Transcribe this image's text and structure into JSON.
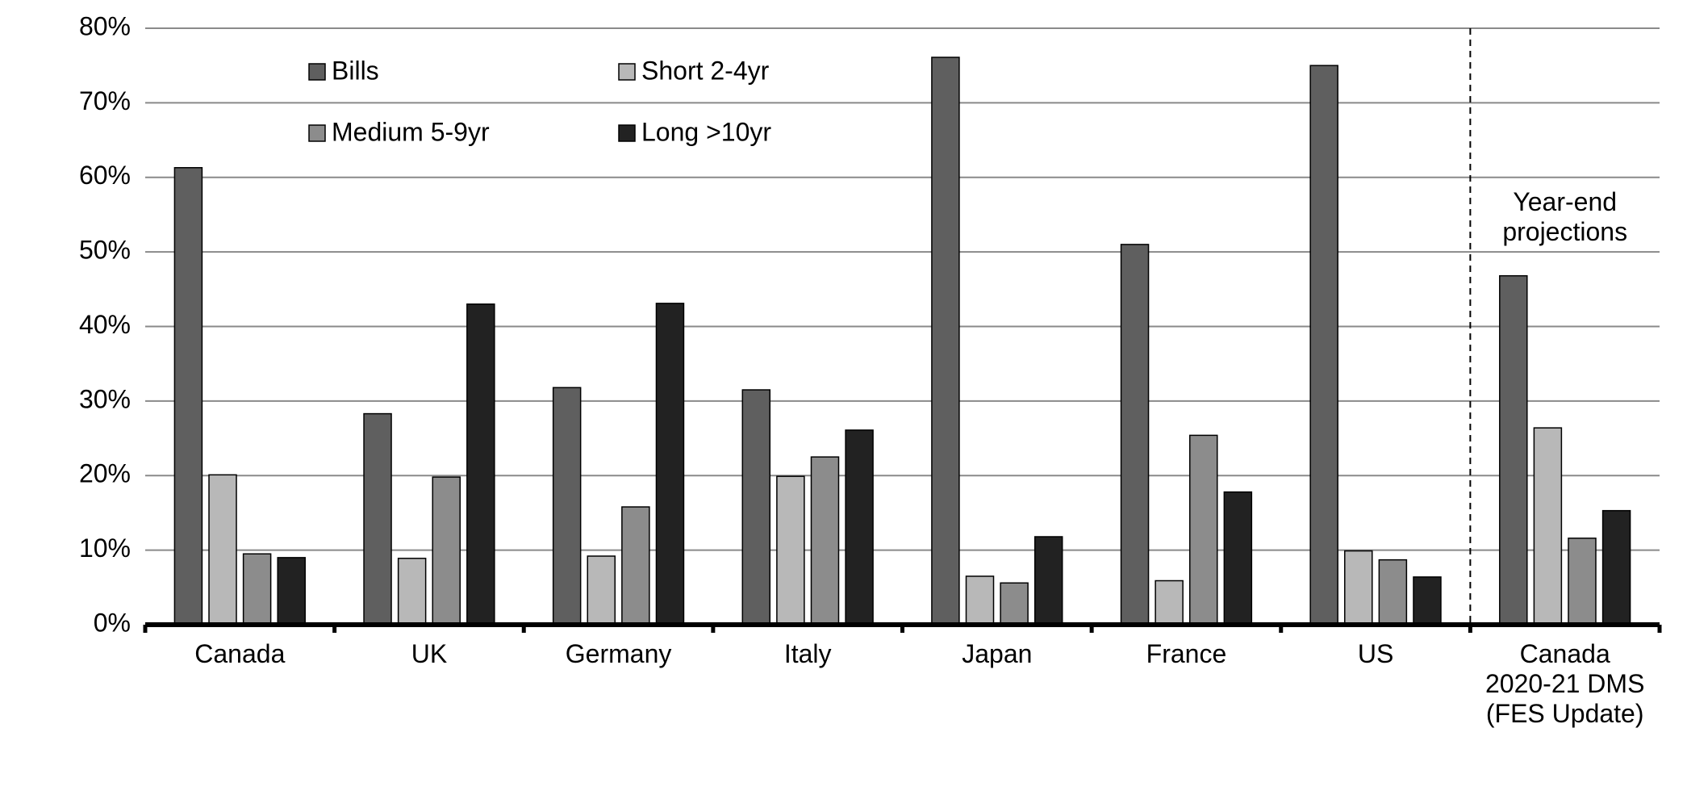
{
  "chart_data": {
    "type": "bar",
    "categories": [
      "Canada",
      "UK",
      "Germany",
      "Italy",
      "Japan",
      "France",
      "US",
      "Canada 2020-21 DMS (FES Update)"
    ],
    "series": [
      {
        "name": "Bills",
        "color": "#5f5f5f",
        "values": [
          61.3,
          28.3,
          31.8,
          31.5,
          76.1,
          51.0,
          75.0,
          46.8
        ]
      },
      {
        "name": "Short 2-4yr",
        "color": "#b8b8b8",
        "values": [
          20.1,
          8.9,
          9.2,
          19.9,
          6.5,
          5.9,
          9.9,
          26.4
        ]
      },
      {
        "name": "Medium 5-9yr",
        "color": "#8c8c8c",
        "values": [
          9.5,
          19.8,
          15.8,
          22.5,
          5.6,
          25.4,
          8.7,
          11.6
        ]
      },
      {
        "name": "Long >10yr",
        "color": "#222222",
        "values": [
          9.0,
          43.0,
          43.1,
          26.1,
          11.8,
          17.8,
          6.4,
          15.3
        ]
      }
    ],
    "ylim": [
      0,
      80
    ],
    "yticks": [
      {
        "value": 0,
        "label": "0%"
      },
      {
        "value": 10,
        "label": "10%"
      },
      {
        "value": 20,
        "label": "20%"
      },
      {
        "value": 30,
        "label": "30%"
      },
      {
        "value": 40,
        "label": "40%"
      },
      {
        "value": 50,
        "label": "50%"
      },
      {
        "value": 60,
        "label": "60%"
      },
      {
        "value": 70,
        "label": "70%"
      },
      {
        "value": 80,
        "label": "80%"
      }
    ],
    "grid": true,
    "annotation": "Year-end projections"
  }
}
